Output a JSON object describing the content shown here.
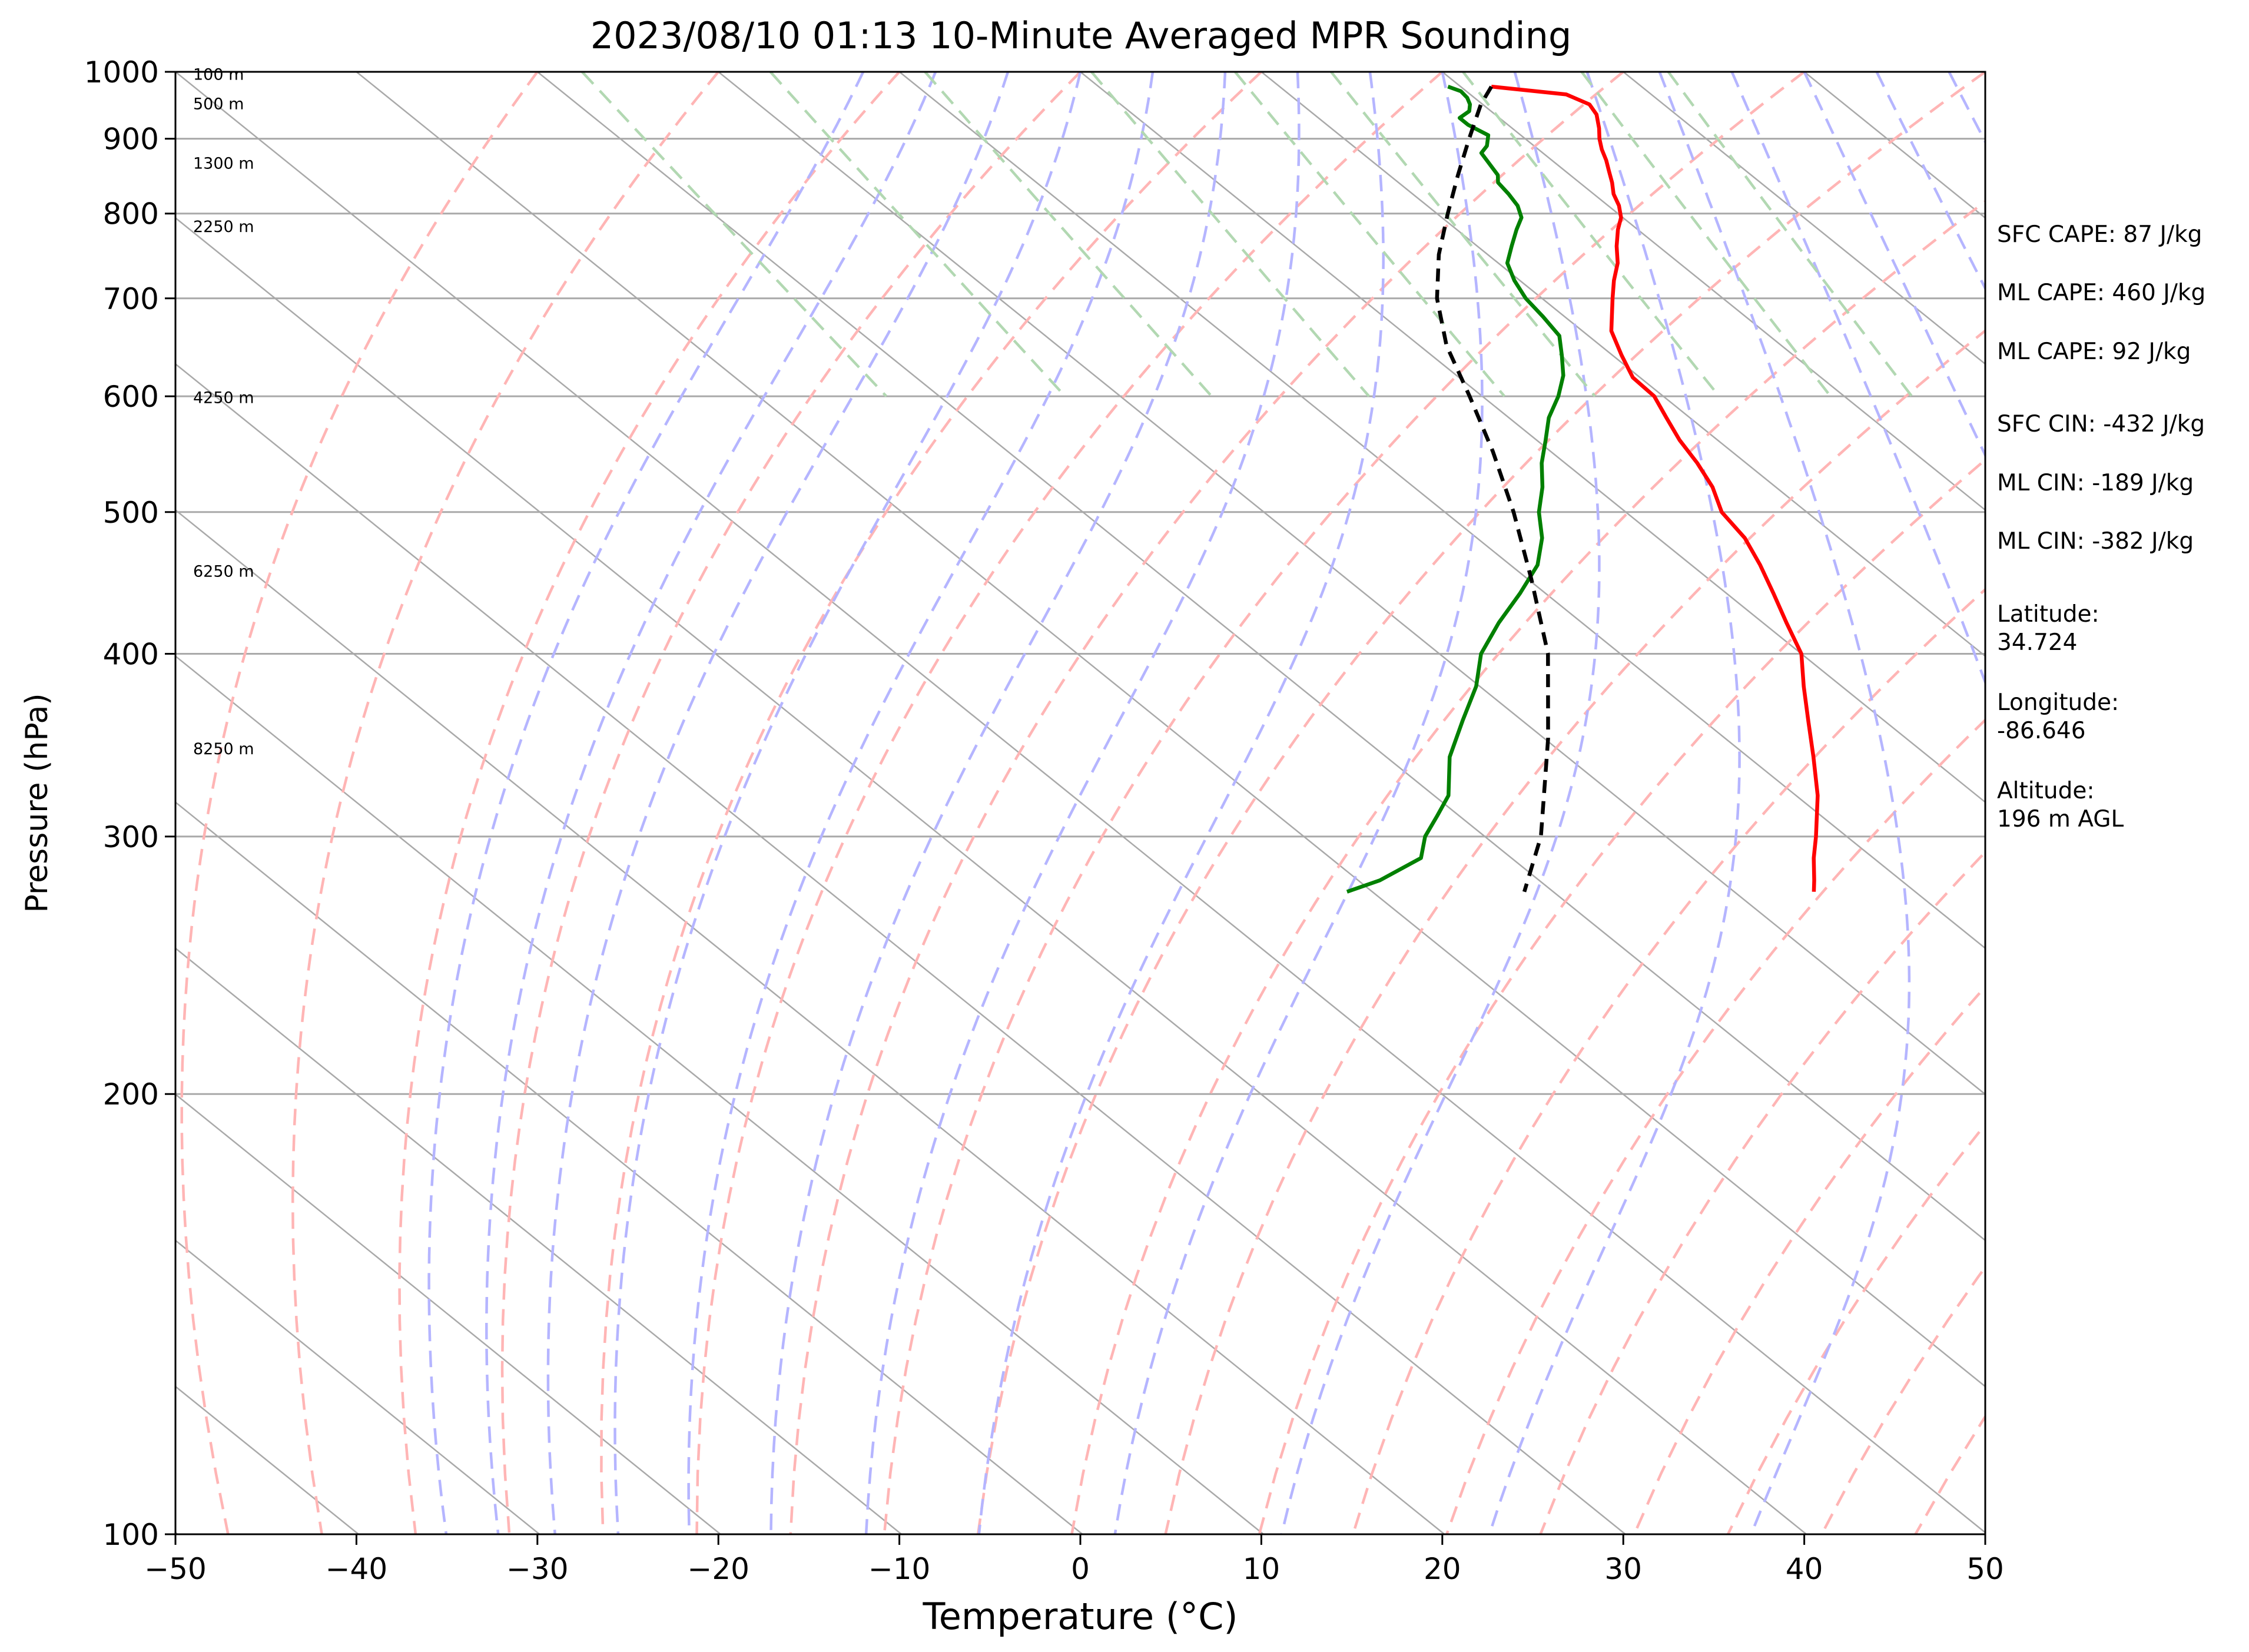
{
  "chart_data": {
    "type": "line",
    "title": "2023/08/10 01:13 10-Minute Averaged MPR Sounding",
    "xlabel": "Temperature (°C)",
    "ylabel": "Pressure (hPa)",
    "xlim": [
      -50,
      50
    ],
    "ylim": [
      1000,
      100
    ],
    "y_scale": "log",
    "grid": true,
    "x_ticks": [
      "−50",
      "−40",
      "−30",
      "−20",
      "−10",
      "0",
      "10",
      "20",
      "30",
      "40",
      "50"
    ],
    "y_ticks": [
      "100",
      "200",
      "300",
      "400",
      "500",
      "600",
      "700",
      "800",
      "900",
      "1000"
    ],
    "height_labels": [
      {
        "pressure": 995,
        "text": "100 m"
      },
      {
        "pressure": 950,
        "text": "500 m"
      },
      {
        "pressure": 865,
        "text": "1300 m"
      },
      {
        "pressure": 783,
        "text": "2250 m"
      },
      {
        "pressure": 598,
        "text": "4250 m"
      },
      {
        "pressure": 455,
        "text": "6250 m"
      },
      {
        "pressure": 344,
        "text": "8250 m"
      }
    ],
    "series": [
      {
        "key": "temperature",
        "color": "#ff0000",
        "points": [
          [
            977,
            21.7
          ],
          [
            965,
            25.3
          ],
          [
            950,
            25.9
          ],
          [
            935,
            25.6
          ],
          [
            915,
            24.8
          ],
          [
            900,
            24.1
          ],
          [
            885,
            23.5
          ],
          [
            870,
            23.0
          ],
          [
            855,
            22.4
          ],
          [
            840,
            21.8
          ],
          [
            825,
            21.1
          ],
          [
            810,
            20.6
          ],
          [
            795,
            19.9
          ],
          [
            780,
            18.9
          ],
          [
            760,
            17.7
          ],
          [
            740,
            16.6
          ],
          [
            720,
            15.2
          ],
          [
            700,
            13.9
          ],
          [
            680,
            12.6
          ],
          [
            665,
            11.6
          ],
          [
            640,
            10.5
          ],
          [
            618,
            9.6
          ],
          [
            600,
            9.5
          ],
          [
            580,
            8.7
          ],
          [
            560,
            7.9
          ],
          [
            540,
            7.3
          ],
          [
            520,
            6.5
          ],
          [
            500,
            5.3
          ],
          [
            480,
            4.8
          ],
          [
            460,
            3.8
          ],
          [
            440,
            2.6
          ],
          [
            420,
            1.3
          ],
          [
            400,
            0.0
          ],
          [
            380,
            -2.1
          ],
          [
            360,
            -4.2
          ],
          [
            340,
            -6.4
          ],
          [
            320,
            -8.8
          ],
          [
            300,
            -11.7
          ],
          [
            290,
            -13.3
          ],
          [
            280,
            -14.8
          ],
          [
            275,
            -15.6
          ]
        ]
      },
      {
        "key": "dewpoint",
        "color": "#008000",
        "points": [
          [
            977,
            19.3
          ],
          [
            970,
            19.7
          ],
          [
            960,
            19.6
          ],
          [
            950,
            19.3
          ],
          [
            940,
            18.8
          ],
          [
            930,
            17.8
          ],
          [
            920,
            17.8
          ],
          [
            905,
            18.2
          ],
          [
            890,
            17.4
          ],
          [
            880,
            16.6
          ],
          [
            870,
            16.4
          ],
          [
            850,
            16.0
          ],
          [
            840,
            15.5
          ],
          [
            825,
            15.3
          ],
          [
            810,
            15.0
          ],
          [
            795,
            14.4
          ],
          [
            780,
            13.3
          ],
          [
            760,
            11.9
          ],
          [
            740,
            10.5
          ],
          [
            720,
            9.7
          ],
          [
            700,
            9.1
          ],
          [
            680,
            8.8
          ],
          [
            660,
            8.4
          ],
          [
            640,
            7.2
          ],
          [
            620,
            5.9
          ],
          [
            600,
            4.2
          ],
          [
            580,
            2.2
          ],
          [
            560,
            0.5
          ],
          [
            540,
            -1.3
          ],
          [
            520,
            -2.9
          ],
          [
            500,
            -4.8
          ],
          [
            480,
            -6.4
          ],
          [
            460,
            -8.5
          ],
          [
            440,
            -11.4
          ],
          [
            420,
            -14.6
          ],
          [
            400,
            -17.7
          ],
          [
            380,
            -20.2
          ],
          [
            360,
            -23.3
          ],
          [
            340,
            -26.5
          ],
          [
            320,
            -29.2
          ],
          [
            310,
            -31.2
          ],
          [
            300,
            -33.3
          ],
          [
            290,
            -35.0
          ],
          [
            280,
            -38.8
          ],
          [
            275,
            -41.4
          ]
        ]
      },
      {
        "key": "parcel",
        "color": "#000000",
        "dashed": true,
        "points": [
          [
            977,
            21.7
          ],
          [
            950,
            19.9
          ],
          [
            900,
            16.9
          ],
          [
            850,
            13.8
          ],
          [
            800,
            10.6
          ],
          [
            750,
            7.3
          ],
          [
            700,
            4.2
          ],
          [
            650,
            1.5
          ],
          [
            600,
            -0.7
          ],
          [
            550,
            -3.2
          ],
          [
            500,
            -6.2
          ],
          [
            450,
            -9.8
          ],
          [
            400,
            -14.0
          ],
          [
            350,
            -19.8
          ],
          [
            300,
            -26.9
          ],
          [
            275,
            -31.6
          ]
        ]
      }
    ],
    "reference_lines": [
      {
        "kind": "isotherms",
        "color": "#a9a9a9"
      },
      {
        "kind": "dry adiabats",
        "color": "#ffb5b5",
        "dashed": true
      },
      {
        "kind": "moist adiabats",
        "color": "#b5b5ff",
        "dashed": true
      },
      {
        "kind": "mixing ratio lines",
        "color": "#b2d8b2",
        "dashed": true
      }
    ]
  },
  "info": {
    "sfc_cape": "SFC CAPE: 87 J/kg",
    "ml_cape_1": "ML CAPE: 460 J/kg",
    "ml_cape_2": "ML CAPE: 92 J/kg",
    "sfc_cin": "SFC CIN: -432 J/kg",
    "ml_cin_1": "ML CIN: -189 J/kg",
    "ml_cin_2": "ML CIN: -382 J/kg",
    "latitude": "Latitude:\n34.724",
    "longitude": "Longitude:\n-86.646",
    "altitude": "Altitude:\n196 m AGL"
  }
}
